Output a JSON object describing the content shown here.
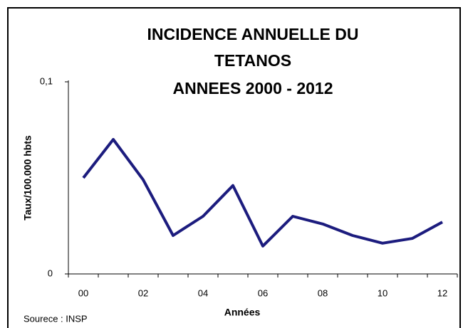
{
  "chart_data": {
    "type": "line",
    "title": [
      "INCIDENCE ANNUELLE  DU",
      "TETANOS",
      "ANNEES  2000 - 2012"
    ],
    "y_label": "Taux/100.000 hbts",
    "x_label": "Années",
    "source": "Sourece : INSP",
    "categories": [
      "00",
      null,
      "02",
      null,
      "04",
      null,
      "06",
      null,
      "08",
      null,
      "10",
      null,
      "12"
    ],
    "series": [
      {
        "name": null,
        "color": "#1c1c7e",
        "values": [
          0.05,
          0.07,
          0.049,
          0.02,
          0.03,
          0.046,
          0.0145,
          0.03,
          0.026,
          0.02,
          0.016,
          0.0185,
          0.027
        ]
      }
    ],
    "ylim": [
      0,
      0.1
    ],
    "yticks": [
      0,
      {
        "value": 0.1,
        "label": "0,1"
      }
    ],
    "grid": false
  }
}
